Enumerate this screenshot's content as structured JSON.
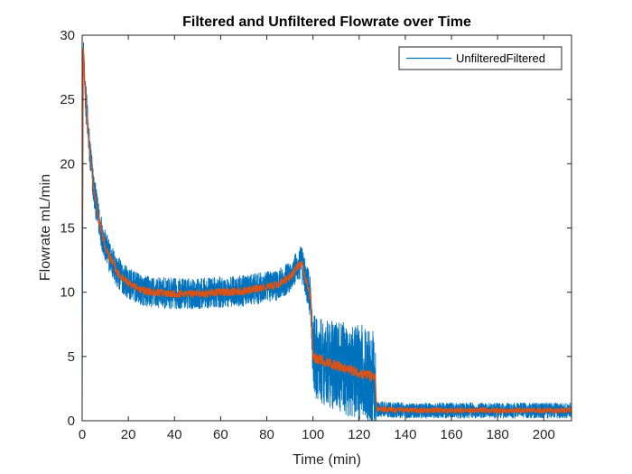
{
  "chart_data": {
    "type": "line",
    "title": "Filtered and Unfiltered Flowrate over Time",
    "xlabel": "Time (min)",
    "ylabel": "Flowrate mL/min",
    "xlim": [
      0,
      212
    ],
    "ylim": [
      0,
      30
    ],
    "xticks": [
      0,
      20,
      40,
      60,
      80,
      100,
      120,
      140,
      160,
      180,
      200
    ],
    "yticks": [
      0,
      5,
      10,
      15,
      20,
      25,
      30
    ],
    "grid": false,
    "legend": {
      "position": "top-right",
      "text": "UnfilteredFiltered"
    },
    "series": [
      {
        "name": "Unfiltered",
        "color": "#0072BD",
        "x": [
          0,
          0.5,
          1,
          2,
          3,
          5,
          7,
          10,
          15,
          20,
          25,
          30,
          40,
          50,
          60,
          70,
          80,
          85,
          90,
          93,
          95,
          97,
          98,
          99,
          100,
          105,
          110,
          115,
          120,
          125,
          127,
          127.5,
          130,
          140,
          150,
          160,
          170,
          180,
          190,
          200,
          212
        ],
        "y": [
          0,
          28.7,
          26.5,
          24,
          21.5,
          18,
          15.8,
          13.5,
          11.6,
          10.7,
          10.2,
          10,
          9.9,
          9.9,
          10,
          10.1,
          10.4,
          10.6,
          11.2,
          11.9,
          12.3,
          10.9,
          10.3,
          9.5,
          5,
          4.6,
          4.3,
          4,
          3.7,
          3.5,
          3.3,
          0.9,
          0.9,
          0.8,
          0.8,
          0.8,
          0.8,
          0.8,
          0.8,
          0.8,
          0.8
        ],
        "noise": [
          0,
          1.2,
          1.4,
          1.5,
          1.5,
          1.4,
          1.3,
          1.3,
          1.3,
          1.2,
          1.2,
          1.2,
          1.2,
          1.2,
          1.2,
          1.2,
          1.2,
          1.2,
          1.2,
          1.3,
          1.4,
          1.5,
          1.6,
          1.7,
          3.2,
          3.4,
          3.5,
          3.6,
          3.8,
          3.8,
          3.8,
          0.6,
          0.6,
          0.6,
          0.6,
          0.6,
          0.6,
          0.6,
          0.6,
          0.6,
          0.6
        ]
      },
      {
        "name": "Filtered",
        "color": "#D95319",
        "x": [
          0,
          0.5,
          1,
          2,
          3,
          5,
          7,
          10,
          15,
          20,
          25,
          30,
          40,
          50,
          60,
          70,
          80,
          85,
          90,
          93,
          95,
          97,
          98,
          99,
          100,
          105,
          110,
          115,
          120,
          125,
          127,
          127.5,
          130,
          140,
          150,
          160,
          170,
          180,
          190,
          200,
          212
        ],
        "y": [
          12,
          29.5,
          26.5,
          24,
          21.5,
          18,
          15.8,
          13.5,
          11.6,
          10.7,
          10.2,
          10,
          9.9,
          9.9,
          10,
          10.1,
          10.4,
          10.6,
          11.2,
          11.9,
          12.3,
          10.9,
          10.3,
          9.5,
          5,
          4.6,
          4.3,
          4,
          3.7,
          3.5,
          3.3,
          0.9,
          0.9,
          0.8,
          0.8,
          0.8,
          0.8,
          0.8,
          0.8,
          0.8,
          0.8
        ],
        "noise": [
          0,
          0.3,
          0.3,
          0.3,
          0.3,
          0.3,
          0.3,
          0.3,
          0.3,
          0.3,
          0.3,
          0.3,
          0.3,
          0.3,
          0.3,
          0.3,
          0.3,
          0.3,
          0.3,
          0.3,
          0.3,
          0.3,
          0.3,
          0.3,
          0.4,
          0.4,
          0.4,
          0.4,
          0.4,
          0.4,
          0.4,
          0.2,
          0.2,
          0.2,
          0.2,
          0.2,
          0.2,
          0.2,
          0.2,
          0.2,
          0.2
        ]
      }
    ]
  }
}
